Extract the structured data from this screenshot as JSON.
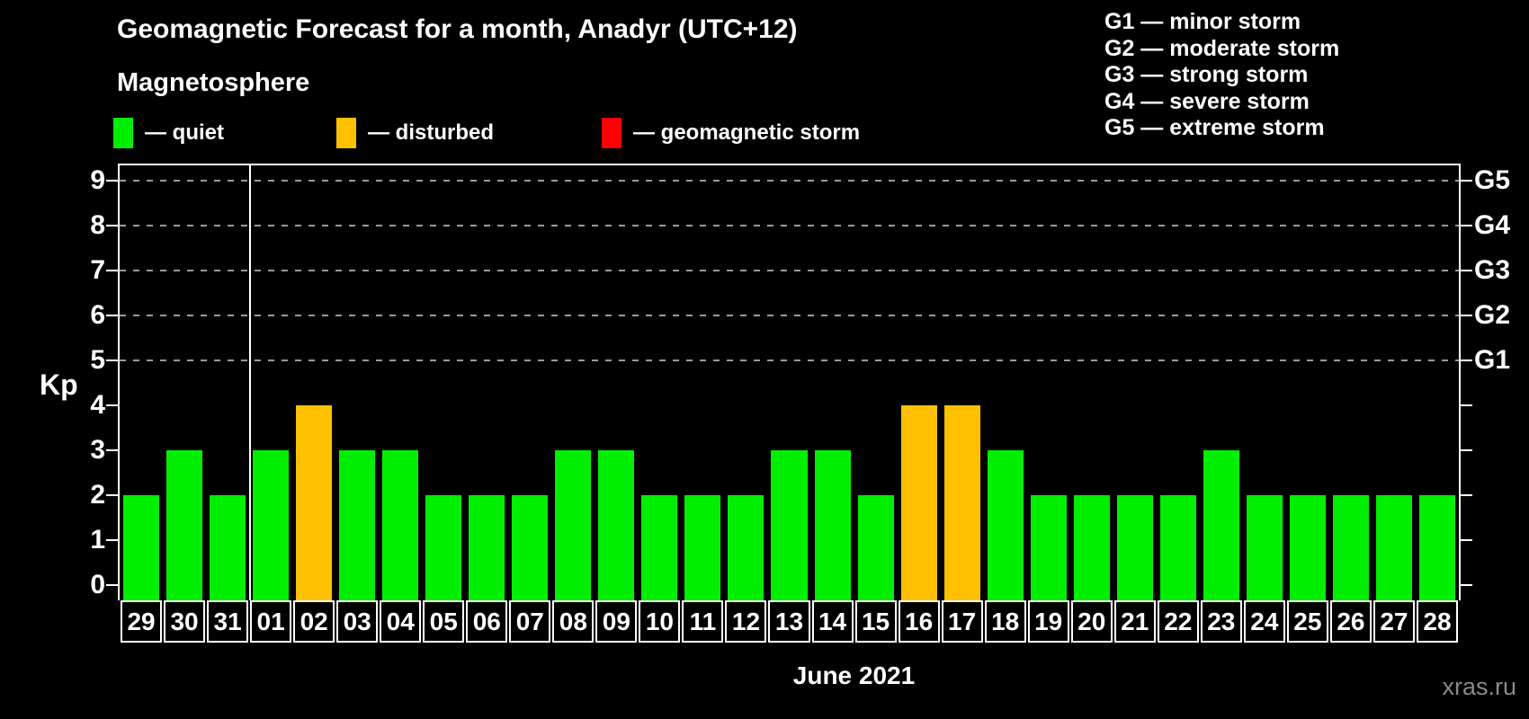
{
  "header": {
    "title": "Geomagnetic Forecast for a month, Anadyr (UTC+12)",
    "subtitle": "Magnetosphere",
    "watermark": "xras.ru"
  },
  "legend": {
    "items": [
      {
        "name": "quiet",
        "label": "— quiet",
        "color": "#00ef00"
      },
      {
        "name": "disturbed",
        "label": "— disturbed",
        "color": "#ffc000"
      },
      {
        "name": "storm",
        "label": "— geomagnetic storm",
        "color": "#ff0000"
      }
    ]
  },
  "g_legend": {
    "lines": [
      "G1 — minor storm",
      "G2 — moderate storm",
      "G3 — strong storm",
      "G4 — severe storm",
      "G5 — extreme storm"
    ]
  },
  "chart_data": {
    "type": "bar",
    "title": "Geomagnetic Forecast for a month, Anadyr (UTC+12)",
    "ylabel": "Kp",
    "xlabel": "June 2021",
    "ylim": [
      0,
      9.4
    ],
    "grid": "dashed horizontal lines at G-storm levels only",
    "y_ticks": [
      0,
      1,
      2,
      3,
      4,
      5,
      6,
      7,
      8,
      9
    ],
    "g_levels": [
      {
        "label": "G1",
        "kp": 5
      },
      {
        "label": "G2",
        "kp": 6
      },
      {
        "label": "G3",
        "kp": 7
      },
      {
        "label": "G4",
        "kp": 8
      },
      {
        "label": "G5",
        "kp": 9
      }
    ],
    "june_start_index": 3,
    "colors": {
      "quiet": "#00ef00",
      "disturbed": "#ffc000",
      "storm": "#ff0000"
    },
    "bars": [
      {
        "date": "29",
        "kp": 2,
        "status": "quiet"
      },
      {
        "date": "30",
        "kp": 3,
        "status": "quiet"
      },
      {
        "date": "31",
        "kp": 2,
        "status": "quiet"
      },
      {
        "date": "01",
        "kp": 3,
        "status": "quiet"
      },
      {
        "date": "02",
        "kp": 4,
        "status": "disturbed"
      },
      {
        "date": "03",
        "kp": 3,
        "status": "quiet"
      },
      {
        "date": "04",
        "kp": 3,
        "status": "quiet"
      },
      {
        "date": "05",
        "kp": 2,
        "status": "quiet"
      },
      {
        "date": "06",
        "kp": 2,
        "status": "quiet"
      },
      {
        "date": "07",
        "kp": 2,
        "status": "quiet"
      },
      {
        "date": "08",
        "kp": 3,
        "status": "quiet"
      },
      {
        "date": "09",
        "kp": 3,
        "status": "quiet"
      },
      {
        "date": "10",
        "kp": 2,
        "status": "quiet"
      },
      {
        "date": "11",
        "kp": 2,
        "status": "quiet"
      },
      {
        "date": "12",
        "kp": 2,
        "status": "quiet"
      },
      {
        "date": "13",
        "kp": 3,
        "status": "quiet"
      },
      {
        "date": "14",
        "kp": 3,
        "status": "quiet"
      },
      {
        "date": "15",
        "kp": 2,
        "status": "quiet"
      },
      {
        "date": "16",
        "kp": 4,
        "status": "disturbed"
      },
      {
        "date": "17",
        "kp": 4,
        "status": "disturbed"
      },
      {
        "date": "18",
        "kp": 3,
        "status": "quiet"
      },
      {
        "date": "19",
        "kp": 2,
        "status": "quiet"
      },
      {
        "date": "20",
        "kp": 2,
        "status": "quiet"
      },
      {
        "date": "21",
        "kp": 2,
        "status": "quiet"
      },
      {
        "date": "22",
        "kp": 2,
        "status": "quiet"
      },
      {
        "date": "23",
        "kp": 3,
        "status": "quiet"
      },
      {
        "date": "24",
        "kp": 2,
        "status": "quiet"
      },
      {
        "date": "25",
        "kp": 2,
        "status": "quiet"
      },
      {
        "date": "26",
        "kp": 2,
        "status": "quiet"
      },
      {
        "date": "27",
        "kp": 2,
        "status": "quiet"
      },
      {
        "date": "28",
        "kp": 2,
        "status": "quiet"
      }
    ]
  }
}
